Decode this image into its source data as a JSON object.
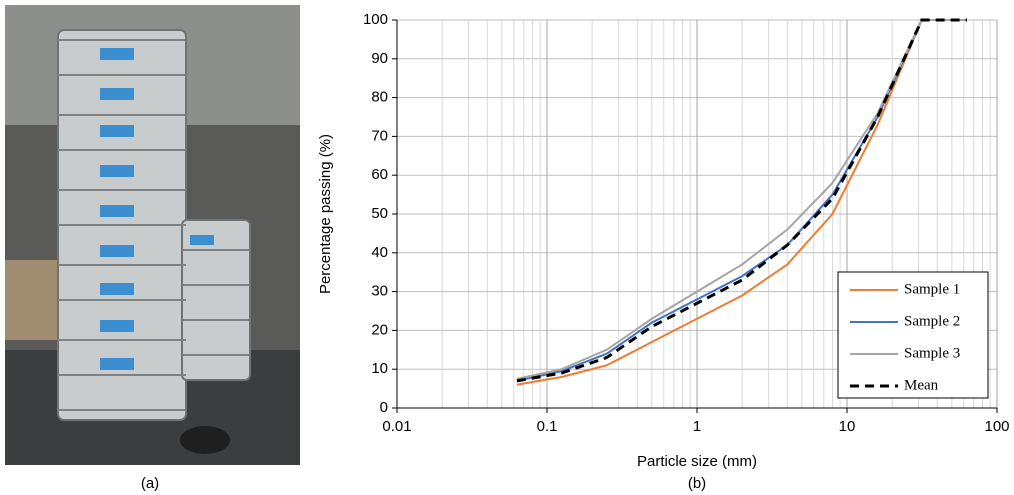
{
  "panel_labels": [
    "(a)",
    "(b)"
  ],
  "chart_data": {
    "type": "line",
    "x_label": "Particle size (mm)",
    "y_label": "Percentage passing (%)",
    "x": [
      0.063,
      0.125,
      0.25,
      0.5,
      1,
      2,
      4,
      8,
      16,
      31.5,
      63
    ],
    "series": [
      {
        "name": "Sample 1",
        "color": "#ed7d31",
        "dash": false,
        "values": [
          6,
          8,
          11,
          17,
          23,
          29,
          37,
          50,
          73,
          100,
          100
        ]
      },
      {
        "name": "Sample 2",
        "color": "#4472c4",
        "dash": false,
        "values": [
          7,
          9.5,
          14,
          22,
          28,
          34,
          42,
          55,
          75,
          100,
          100
        ]
      },
      {
        "name": "Sample 3",
        "color": "#a5a5a5",
        "dash": false,
        "values": [
          7.5,
          10,
          15,
          23,
          30,
          37,
          46,
          58,
          76,
          100,
          100
        ]
      },
      {
        "name": "Mean",
        "color": "#000000",
        "dash": true,
        "values": [
          7,
          9,
          13,
          21,
          27,
          33,
          42,
          54,
          75,
          100,
          100
        ]
      }
    ],
    "xlim": [
      0.01,
      100
    ],
    "xticks": [
      0.01,
      0.1,
      1,
      10,
      100
    ],
    "xlog": true,
    "ylim": [
      0,
      100
    ],
    "yticks": [
      0,
      10,
      20,
      30,
      40,
      50,
      60,
      70,
      80,
      90,
      100
    ],
    "grid": true,
    "legend": "lower right"
  }
}
